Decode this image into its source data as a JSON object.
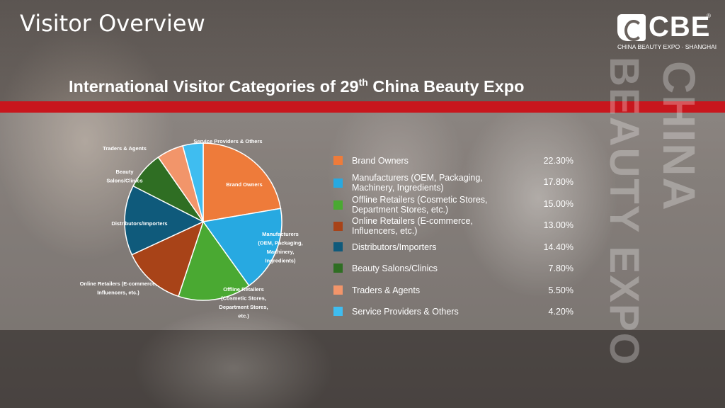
{
  "page_title": "Visitor Overview",
  "logo": {
    "text": "CBE",
    "registered_mark": "®",
    "subtitle": "CHINA BEAUTY EXPO · SHANGHAI"
  },
  "watermark": {
    "line1": "CHINA",
    "line2": "BEAUTY EXPO"
  },
  "chart_title": {
    "prefix": "International Visitor Categories of 29",
    "superscript": "th",
    "suffix": " China Beauty Expo"
  },
  "chart_data": {
    "type": "pie",
    "title": "International Visitor Categories of 29th China Beauty Expo",
    "slices": [
      {
        "label": "Brand Owners",
        "pie_label": [
          "Brand Owners"
        ],
        "value": 22.3,
        "display": "22.30%",
        "color": "#ee7b3a"
      },
      {
        "label": "Manufacturers (OEM, Packaging, Machinery, Ingredients)",
        "pie_label": [
          "Manufacturers",
          "(OEM, Packaging,",
          "Machinery,",
          "Ingredients)"
        ],
        "value": 17.8,
        "display": "17.80%",
        "color": "#27a9e1"
      },
      {
        "label": "Offline Retailers (Cosmetic Stores, Department Stores, etc.)",
        "pie_label": [
          "Offline Retailers",
          "(Cosmetic Stores,",
          "Department Stores,",
          "etc.)"
        ],
        "value": 15.0,
        "display": "15.00%",
        "color": "#4aa932"
      },
      {
        "label": "Online Retailers (E-commerce, Influencers, etc.)",
        "pie_label": [
          "Online Retailers (E-commerce,",
          "Influencers, etc.)"
        ],
        "value": 13.0,
        "display": "13.00%",
        "color": "#a84318"
      },
      {
        "label": "Distributors/Importers",
        "pie_label": [
          "Distributors/Importers"
        ],
        "value": 14.4,
        "display": "14.40%",
        "color": "#0f5a7b"
      },
      {
        "label": "Beauty Salons/Clinics",
        "pie_label": [
          "Beauty",
          "Salons/Clinics"
        ],
        "value": 7.8,
        "display": "7.80%",
        "color": "#2f6e23"
      },
      {
        "label": "Traders & Agents",
        "pie_label": [
          "Traders & Agents"
        ],
        "value": 5.5,
        "display": "5.50%",
        "color": "#f2956a"
      },
      {
        "label": "Service Providers & Others",
        "pie_label": [
          "Service Providers & Others"
        ],
        "value": 4.2,
        "display": "4.20%",
        "color": "#3fbdf0"
      }
    ],
    "legend_position": "right"
  },
  "legend": [
    {
      "label_lines": [
        "Brand Owners"
      ],
      "value": "22.30%",
      "color": "#ee7b3a"
    },
    {
      "label_lines": [
        "Manufacturers (OEM, Packaging,",
        "Machinery, Ingredients)"
      ],
      "value": "17.80%",
      "color": "#27a9e1"
    },
    {
      "label_lines": [
        "Offline Retailers (Cosmetic Stores,",
        "Department Stores, etc.)"
      ],
      "value": "15.00%",
      "color": "#4aa932"
    },
    {
      "label_lines": [
        "Online Retailers (E-commerce,",
        "Influencers, etc.)"
      ],
      "value": "13.00%",
      "color": "#a84318"
    },
    {
      "label_lines": [
        "Distributors/Importers"
      ],
      "value": "14.40%",
      "color": "#0f5a7b"
    },
    {
      "label_lines": [
        "Beauty Salons/Clinics"
      ],
      "value": "7.80%",
      "color": "#2f6e23"
    },
    {
      "label_lines": [
        "Traders & Agents"
      ],
      "value": "5.50%",
      "color": "#f2956a"
    },
    {
      "label_lines": [
        "Service Providers & Others"
      ],
      "value": "4.20%",
      "color": "#3fbdf0"
    }
  ]
}
